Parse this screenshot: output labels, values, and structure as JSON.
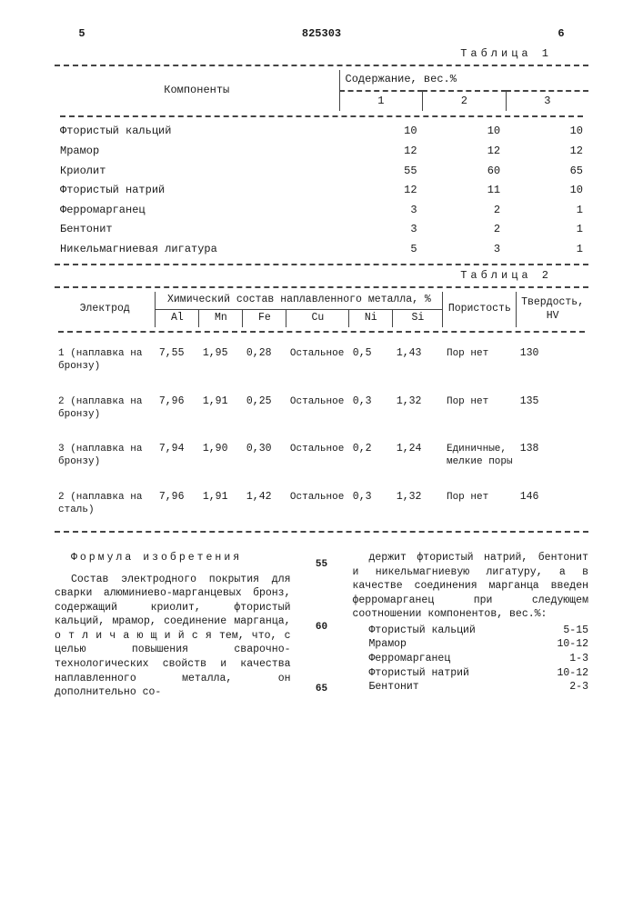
{
  "header": {
    "left_num": "5",
    "doc_num": "825303",
    "right_num": "6"
  },
  "table1": {
    "caption": "Таблица 1",
    "col_components": "Компоненты",
    "col_content": "Содержание, вес.%",
    "subcols": [
      "1",
      "2",
      "3"
    ],
    "rows": [
      {
        "name": "Фтористый кальций",
        "v": [
          "10",
          "10",
          "10"
        ]
      },
      {
        "name": "Мрамор",
        "v": [
          "12",
          "12",
          "12"
        ]
      },
      {
        "name": "Криолит",
        "v": [
          "55",
          "60",
          "65"
        ]
      },
      {
        "name": "Фтористый натрий",
        "v": [
          "12",
          "11",
          "10"
        ]
      },
      {
        "name": "Ферромарганец",
        "v": [
          "3",
          "2",
          "1"
        ]
      },
      {
        "name": "Бентонит",
        "v": [
          "3",
          "2",
          "1"
        ]
      },
      {
        "name": "Никельмагниевая лигатура",
        "v": [
          "5",
          "3",
          "1"
        ]
      }
    ]
  },
  "table2": {
    "caption": "Таблица 2",
    "col_electrode": "Электрод",
    "col_chem": "Химический состав наплавленного металла, %",
    "chem_subcols": [
      "Al",
      "Mn",
      "Fe",
      "Cu",
      "Ni",
      "Si"
    ],
    "col_porosity": "Пористость",
    "col_hardness": "Твердость, HV",
    "cu_rest": "Остальное",
    "rows": [
      {
        "label": "1 (наплавка на бронзу)",
        "al": "7,55",
        "mn": "1,95",
        "fe": "0,28",
        "ni": "0,5",
        "si": "1,43",
        "por": "Пор нет",
        "hv": "130"
      },
      {
        "label": "2 (наплавка на бронзу)",
        "al": "7,96",
        "mn": "1,91",
        "fe": "0,25",
        "ni": "0,3",
        "si": "1,32",
        "por": "Пор нет",
        "hv": "135"
      },
      {
        "label": "3 (наплавка на бронзу)",
        "al": "7,94",
        "mn": "1,90",
        "fe": "0,30",
        "ni": "0,2",
        "si": "1,24",
        "por": "Единичные, мелкие поры",
        "hv": "138"
      },
      {
        "label": "2 (наплавка на сталь)",
        "al": "7,96",
        "mn": "1,91",
        "fe": "1,42",
        "ni": "0,3",
        "si": "1,32",
        "por": "Пор нет",
        "hv": "146"
      }
    ]
  },
  "formula": {
    "title": "Формула изобретения",
    "left_text": "Состав электродного покрытия для сварки алюминиево-марганцевых бронз, содержащий криолит, фтористый кальций, мрамор, соединение марганца, о т л и ч а ю щ и й с я тем, что, с целью повышения сварочно-технологических свойств и качества наплавленного металла, он дополнительно со-",
    "right_text": "держит фтористый натрий, бентонит и никельмагниевую лигатуру, а в качестве соединения марганца введен ферромарганец при следующем соотношении компонентов, вес.%:",
    "gutter": [
      "55",
      "60",
      "65"
    ],
    "ratios": [
      {
        "name": "Фтористый кальций",
        "val": "5-15"
      },
      {
        "name": "Мрамор",
        "val": "10-12"
      },
      {
        "name": "Ферромарганец",
        "val": "1-3"
      },
      {
        "name": "Фтористый натрий",
        "val": "10-12"
      },
      {
        "name": "Бентонит",
        "val": "2-3"
      }
    ]
  },
  "colors": {
    "text": "#1a1a1a",
    "background": "#ffffff",
    "rule": "#444444"
  }
}
